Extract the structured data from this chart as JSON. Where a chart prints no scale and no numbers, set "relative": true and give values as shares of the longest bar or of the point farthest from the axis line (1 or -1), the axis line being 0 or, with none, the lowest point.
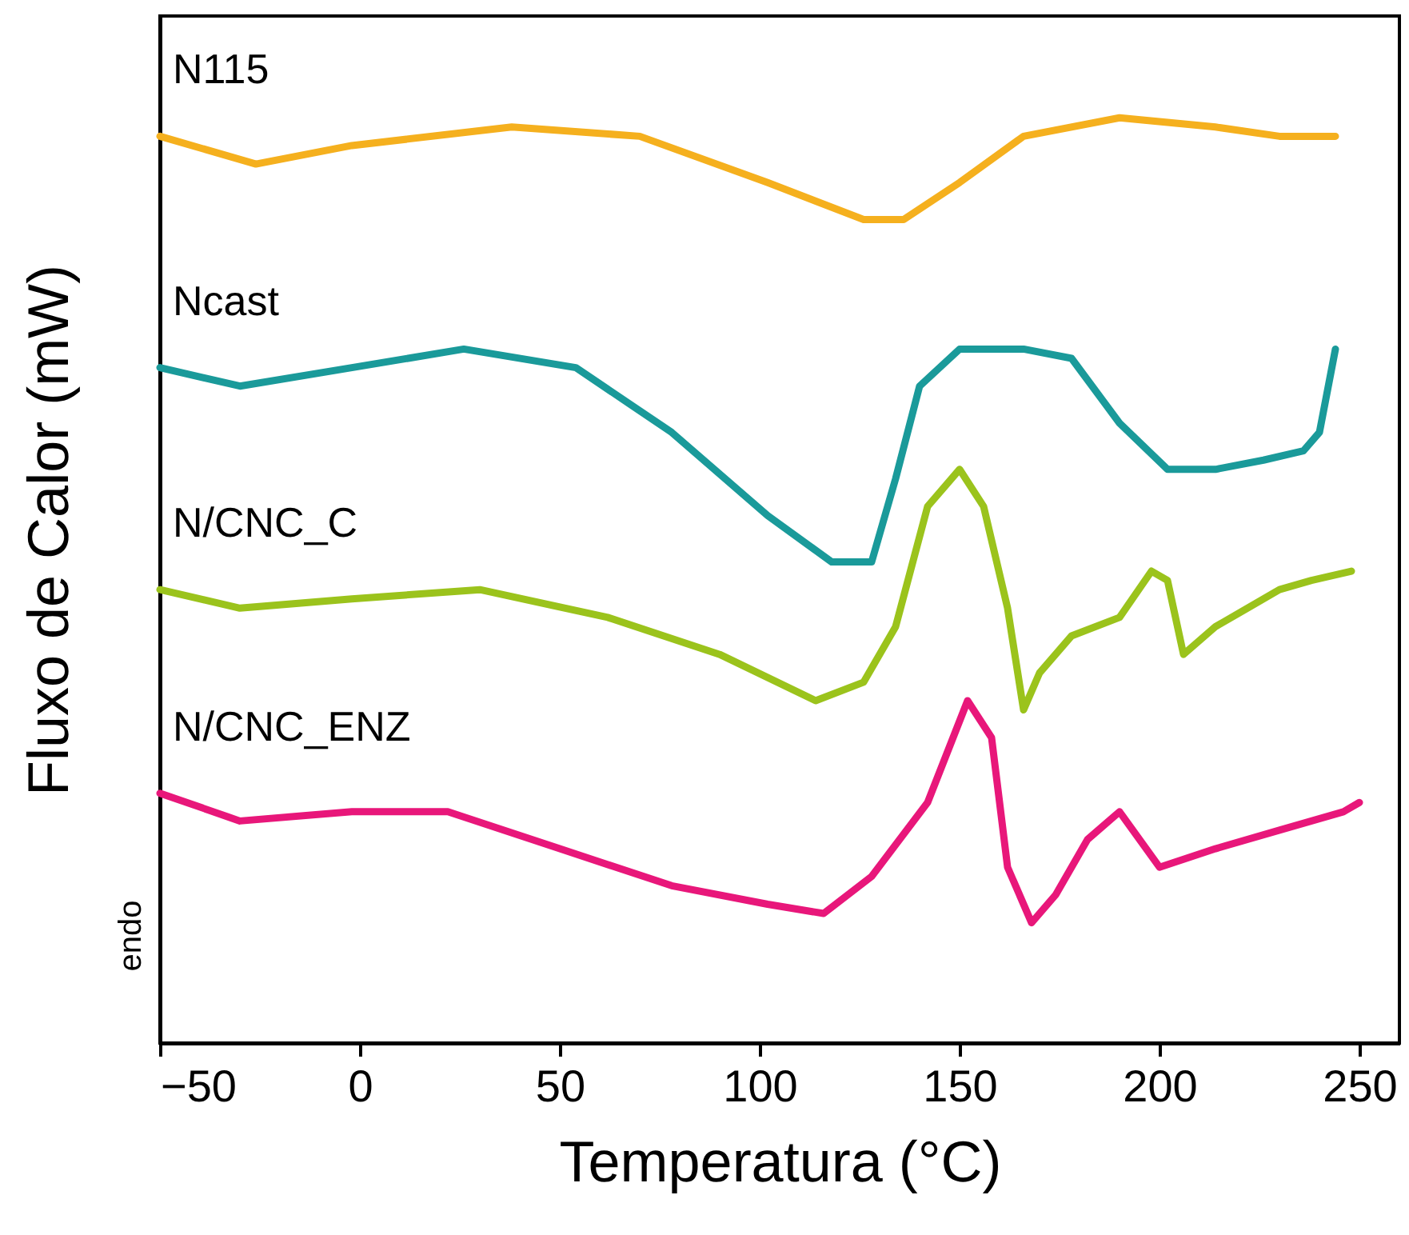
{
  "chart_data": {
    "type": "line",
    "relative": true,
    "xlabel": "Temperatura (°C)",
    "ylabel": "Fluxo de Calor (mW)",
    "xlim": [
      -50,
      260
    ],
    "xticks": [
      -50,
      0,
      50,
      100,
      150,
      200,
      250
    ],
    "tick_labels": "x",
    "grid": false,
    "legend": false,
    "annotations": [
      "endo"
    ],
    "series": [
      {
        "name": "N115",
        "color": "#f5b01e",
        "x": [
          -50,
          -26,
          -2,
          38,
          70,
          102,
          126,
          136,
          150,
          166,
          190,
          214,
          230,
          244
        ],
        "values": [
          0.98,
          0.95,
          0.97,
          0.99,
          0.98,
          0.93,
          0.89,
          0.89,
          0.93,
          0.98,
          1.0,
          0.99,
          0.98,
          0.98
        ]
      },
      {
        "name": "Ncast",
        "color": "#1a9a9a",
        "x": [
          -50,
          -30,
          -2,
          26,
          54,
          78,
          102,
          118,
          128,
          134,
          140,
          150,
          166,
          178,
          190,
          202,
          214,
          226,
          236,
          240,
          244
        ],
        "values": [
          0.73,
          0.71,
          0.73,
          0.75,
          0.73,
          0.66,
          0.57,
          0.52,
          0.52,
          0.61,
          0.71,
          0.75,
          0.75,
          0.74,
          0.67,
          0.62,
          0.62,
          0.63,
          0.64,
          0.66,
          0.75
        ]
      },
      {
        "name": "N/CNC_C",
        "color": "#9bc31c",
        "x": [
          -50,
          -30,
          -2,
          30,
          62,
          90,
          114,
          126,
          134,
          142,
          150,
          156,
          162,
          166,
          170,
          178,
          190,
          198,
          202,
          206,
          214,
          230,
          238,
          248
        ],
        "values": [
          0.49,
          0.47,
          0.48,
          0.49,
          0.46,
          0.42,
          0.37,
          0.39,
          0.45,
          0.58,
          0.62,
          0.58,
          0.47,
          0.36,
          0.4,
          0.44,
          0.46,
          0.51,
          0.5,
          0.42,
          0.45,
          0.49,
          0.5,
          0.51
        ]
      },
      {
        "name": "N/CNC_ENZ",
        "color": "#e8177a",
        "x": [
          -50,
          -30,
          -2,
          22,
          50,
          78,
          102,
          116,
          128,
          142,
          152,
          158,
          162,
          168,
          174,
          182,
          190,
          200,
          214,
          230,
          246,
          250
        ],
        "values": [
          0.27,
          0.24,
          0.25,
          0.25,
          0.21,
          0.17,
          0.15,
          0.14,
          0.18,
          0.26,
          0.37,
          0.33,
          0.19,
          0.13,
          0.16,
          0.22,
          0.25,
          0.19,
          0.21,
          0.23,
          0.25,
          0.26
        ]
      }
    ]
  }
}
